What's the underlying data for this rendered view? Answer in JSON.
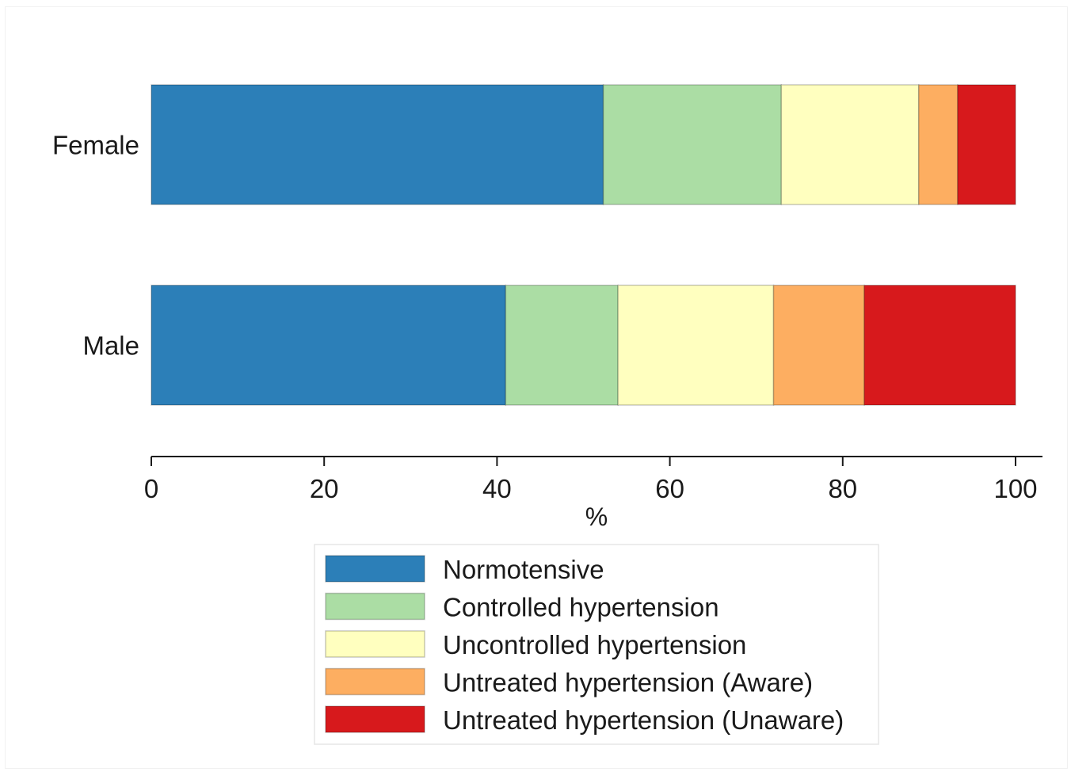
{
  "chart_data": {
    "type": "bar",
    "orientation": "horizontal",
    "stacked": true,
    "categories": [
      "Female",
      "Male"
    ],
    "series": [
      {
        "name": "Normotensive",
        "color": "#2c7fb8",
        "values": [
          52.3,
          41.0
        ]
      },
      {
        "name": "Controlled hypertension",
        "color": "#abdda4",
        "values": [
          20.6,
          13.0
        ]
      },
      {
        "name": "Uncontrolled hypertension",
        "color": "#ffffbf",
        "values": [
          15.9,
          18.0
        ]
      },
      {
        "name": "Untreated hypertension (Aware)",
        "color": "#fdae61",
        "values": [
          4.5,
          10.5
        ]
      },
      {
        "name": "Untreated hypertension (Unaware)",
        "color": "#d7191c",
        "values": [
          6.7,
          17.5
        ]
      }
    ],
    "xlabel": "%",
    "ylabel": "",
    "xlim": [
      0,
      100
    ],
    "xticks": [
      0,
      20,
      40,
      60,
      80,
      100
    ],
    "grid": false,
    "legend_position": "bottom"
  }
}
